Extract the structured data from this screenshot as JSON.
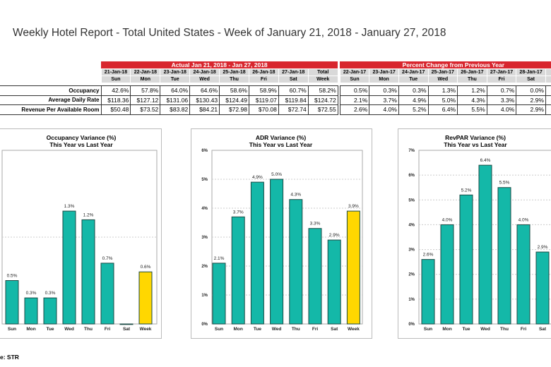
{
  "title": "Weekly Hotel Report - Total United States - Week of January 21, 2018 - January 27, 2018",
  "table": {
    "actual_header": "Actual Jan 21, 2018 - Jan 27, 2018",
    "percent_header": "Percent Change from Previous Year",
    "actual_dates": [
      "21-Jan-18",
      "22-Jan-18",
      "23-Jan-18",
      "24-Jan-18",
      "25-Jan-18",
      "26-Jan-18",
      "27-Jan-18",
      "Total"
    ],
    "actual_days": [
      "Sun",
      "Mon",
      "Tue",
      "Wed",
      "Thu",
      "Fri",
      "Sat",
      "Week"
    ],
    "percent_dates": [
      "22-Jan-17",
      "23-Jan-17",
      "24-Jan-17",
      "25-Jan-17",
      "26-Jan-17",
      "27-Jan-17",
      "28-Jan-17"
    ],
    "percent_days": [
      "Sun",
      "Mon",
      "Tue",
      "Wed",
      "Thu",
      "Fri",
      "Sat"
    ],
    "rows": [
      {
        "label": "Occupancy",
        "actual": [
          "42.6%",
          "57.8%",
          "64.0%",
          "64.6%",
          "58.6%",
          "58.9%",
          "60.7%",
          "58.2%"
        ],
        "percent": [
          "0.5%",
          "0.3%",
          "0.3%",
          "1.3%",
          "1.2%",
          "0.7%",
          "0.0%"
        ]
      },
      {
        "label": "Average Daily Rate",
        "actual": [
          "$118.36",
          "$127.12",
          "$131.06",
          "$130.43",
          "$124.49",
          "$119.07",
          "$119.84",
          "$124.72"
        ],
        "percent": [
          "2.1%",
          "3.7%",
          "4.9%",
          "5.0%",
          "4.3%",
          "3.3%",
          "2.9%"
        ]
      },
      {
        "label": "Revenue Per Available Room",
        "actual": [
          "$50.48",
          "$73.52",
          "$83.82",
          "$84.21",
          "$72.98",
          "$70.08",
          "$72.74",
          "$72.55"
        ],
        "percent": [
          "2.6%",
          "4.0%",
          "5.2%",
          "6.4%",
          "5.5%",
          "4.0%",
          "2.9%"
        ]
      }
    ]
  },
  "colors": {
    "header_red": "#d8262e",
    "bar_teal": "#14b8a8",
    "bar_week": "#ffd700",
    "subheader_gray": "#d9d9d9"
  },
  "chart_data": [
    {
      "type": "bar",
      "title": "Occupancy Variance (%)",
      "subtitle": "This Year vs Last Year",
      "categories": [
        "Sun",
        "Mon",
        "Tue",
        "Wed",
        "Thu",
        "Fri",
        "Sat",
        "Week"
      ],
      "values": [
        0.5,
        0.3,
        0.3,
        1.3,
        1.2,
        0.7,
        0.0,
        0.6
      ],
      "labels": [
        "0.5%",
        "0.3%",
        "0.3%",
        "1.3%",
        "1.2%",
        "0.7%",
        "",
        "0.6%"
      ],
      "ylim": [
        0,
        2
      ],
      "yticks": [],
      "grid": true,
      "highlight": "Week"
    },
    {
      "type": "bar",
      "title": "ADR Variance (%)",
      "subtitle": "This Year vs Last Year",
      "categories": [
        "Sun",
        "Mon",
        "Tue",
        "Wed",
        "Thu",
        "Fri",
        "Sat",
        "Week"
      ],
      "values": [
        2.1,
        3.7,
        4.9,
        5.0,
        4.3,
        3.3,
        2.9,
        3.9
      ],
      "labels": [
        "2.1%",
        "3.7%",
        "4.9%",
        "5.0%",
        "4.3%",
        "3.3%",
        "2.9%",
        "3.9%"
      ],
      "ylim": [
        0,
        6
      ],
      "yticks": [
        "0%",
        "1%",
        "2%",
        "3%",
        "4%",
        "5%",
        "6%"
      ],
      "grid": true,
      "highlight": "Week"
    },
    {
      "type": "bar",
      "title": "RevPAR Variance (%)",
      "subtitle": "This Year vs Last Year",
      "categories": [
        "Sun",
        "Mon",
        "Tue",
        "Wed",
        "Thu",
        "Fri",
        "Sat"
      ],
      "values": [
        2.6,
        4.0,
        5.2,
        6.4,
        5.5,
        4.0,
        2.9
      ],
      "labels": [
        "2.6%",
        "4.0%",
        "5.2%",
        "6.4%",
        "5.5%",
        "4.0%",
        "2.9%"
      ],
      "ylim": [
        0,
        7
      ],
      "yticks": [
        "0%",
        "1%",
        "2%",
        "3%",
        "4%",
        "5%",
        "6%",
        "7%"
      ],
      "grid": true,
      "highlight": "Week"
    }
  ],
  "source": "e: STR"
}
